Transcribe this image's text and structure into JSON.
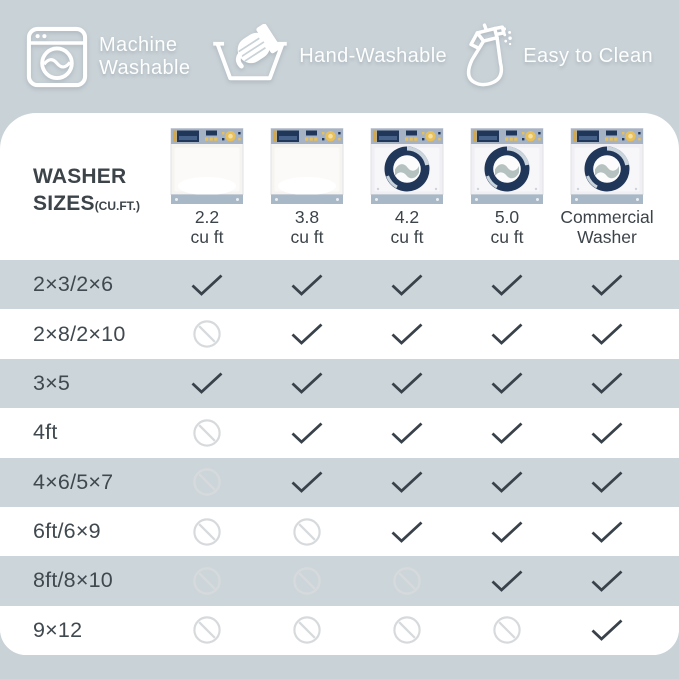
{
  "colors": {
    "background": "#c9d2d7",
    "row_stripe": "#ccd6da",
    "card": "#ffffff",
    "text_dark": "#3c4449",
    "legend_text": "#fdfefe",
    "check": "#39424a",
    "prohibited": "#d7dadc",
    "washer_navy": "#21375a",
    "washer_yellow": "#e8c05a",
    "washer_panel": "#a6b3c4",
    "washer_base": "#a9b8c6"
  },
  "legend": {
    "items": [
      {
        "icon": "washing-machine-icon",
        "label": "Machine Washable",
        "wrap": true
      },
      {
        "icon": "hand-wash-icon",
        "label": "Hand-Washable",
        "wrap": false
      },
      {
        "icon": "spray-bottle-icon",
        "label": "Easy to Clean",
        "wrap": false
      }
    ]
  },
  "table": {
    "title_line1": "WASHER",
    "title_line2": "SIZES",
    "title_unit": "(CU.FT.)",
    "columns": [
      {
        "size": "2.2",
        "unit": "cu ft",
        "washer": "top-loader"
      },
      {
        "size": "3.8",
        "unit": "cu ft",
        "washer": "top-loader"
      },
      {
        "size": "4.2",
        "unit": "cu ft",
        "washer": "front-loader"
      },
      {
        "size": "5.0",
        "unit": "cu ft",
        "washer": "front-loader"
      },
      {
        "size": "Commercial",
        "unit": "Washer",
        "washer": "front-loader"
      }
    ],
    "rows": [
      {
        "rug_size": "2×3/2×6",
        "fits": [
          true,
          true,
          true,
          true,
          true
        ]
      },
      {
        "rug_size": "2×8/2×10",
        "fits": [
          false,
          true,
          true,
          true,
          true
        ]
      },
      {
        "rug_size": "3×5",
        "fits": [
          true,
          true,
          true,
          true,
          true
        ]
      },
      {
        "rug_size": "4ft",
        "fits": [
          false,
          true,
          true,
          true,
          true
        ]
      },
      {
        "rug_size": "4×6/5×7",
        "fits": [
          false,
          true,
          true,
          true,
          true
        ]
      },
      {
        "rug_size": "6ft/6×9",
        "fits": [
          false,
          false,
          true,
          true,
          true
        ]
      },
      {
        "rug_size": "8ft/8×10",
        "fits": [
          false,
          false,
          false,
          true,
          true
        ]
      },
      {
        "rug_size": "9×12",
        "fits": [
          false,
          false,
          false,
          false,
          true
        ]
      }
    ]
  },
  "chart_data": {
    "type": "table",
    "title": "WASHER SIZES (CU.FT.)",
    "legend": [
      "Machine Washable",
      "Hand-Washable",
      "Easy to Clean"
    ],
    "columns": [
      "2.2 cu ft",
      "3.8 cu ft",
      "4.2 cu ft",
      "5.0 cu ft",
      "Commercial Washer"
    ],
    "row_labels": [
      "2×3/2×6",
      "2×8/2×10",
      "3×5",
      "4ft",
      "4×6/5×7",
      "6ft/6×9",
      "8ft/8×10",
      "9×12"
    ],
    "values": [
      [
        "yes",
        "yes",
        "yes",
        "yes",
        "yes"
      ],
      [
        "no",
        "yes",
        "yes",
        "yes",
        "yes"
      ],
      [
        "yes",
        "yes",
        "yes",
        "yes",
        "yes"
      ],
      [
        "no",
        "yes",
        "yes",
        "yes",
        "yes"
      ],
      [
        "no",
        "yes",
        "yes",
        "yes",
        "yes"
      ],
      [
        "no",
        "no",
        "yes",
        "yes",
        "yes"
      ],
      [
        "no",
        "no",
        "no",
        "yes",
        "yes"
      ],
      [
        "no",
        "no",
        "no",
        "no",
        "yes"
      ]
    ]
  }
}
